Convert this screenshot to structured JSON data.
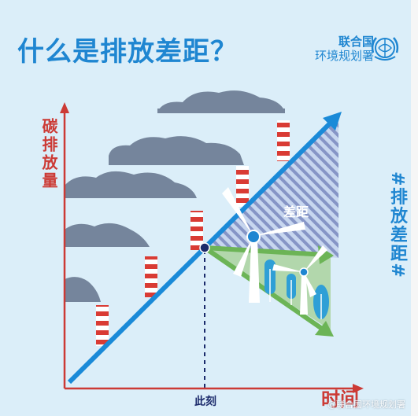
{
  "title": "什么是排放差距？",
  "org": {
    "line1": "联合国",
    "line2": "环境规划署"
  },
  "y_axis_label": "碳排放量",
  "x_axis_label": "时间",
  "now_label": "此刻",
  "gap_label": "差距",
  "hashtag": "#排放差距#",
  "watermark": "@联合国环境规划署",
  "icons": [
    "un-environment-logo",
    "factory-chimney",
    "smoke-cloud",
    "wind-turbine",
    "tree"
  ],
  "colors": {
    "background": "#dbeef9",
    "title_blue": "#1f86d1",
    "axis_red": "#cc3a35",
    "trend_blue": "#1a8ad8",
    "path_green": "#6cb456",
    "smoke": "#75859c",
    "point": "#1b2a6b"
  }
}
